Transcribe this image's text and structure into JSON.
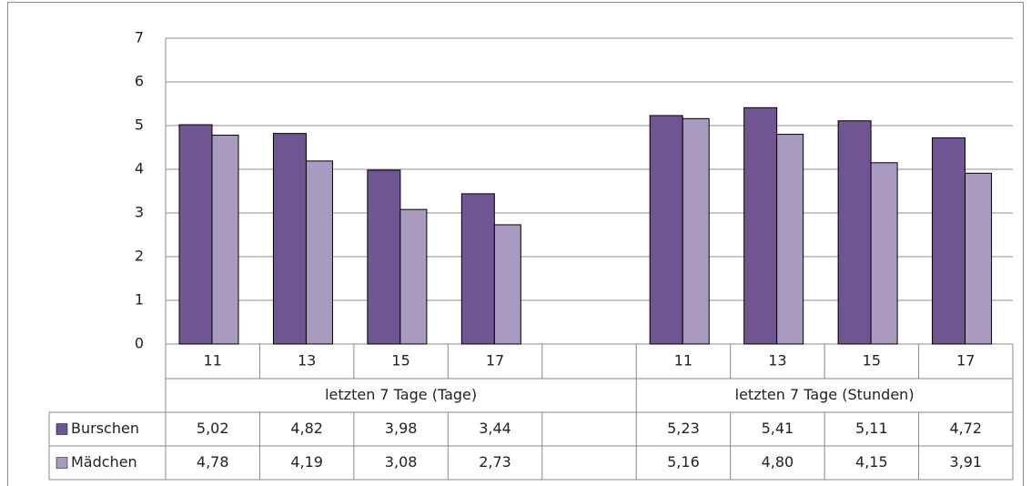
{
  "chart_data": {
    "type": "bar",
    "categories": [
      "11",
      "13",
      "15",
      "17",
      null,
      "11",
      "13",
      "15",
      "17"
    ],
    "groups": [
      "letzten 7 Tage (Tage)",
      "letzten 7 Tage (Stunden)"
    ],
    "series": [
      {
        "name": "Burschen",
        "color": "#6f5592",
        "values": [
          5.02,
          4.82,
          3.98,
          3.44,
          null,
          5.23,
          5.41,
          5.11,
          4.72
        ],
        "value_labels": [
          "5,02",
          "4,82",
          "3,98",
          "3,44",
          null,
          "5,23",
          "5,41",
          "5,11",
          "4,72"
        ]
      },
      {
        "name": "Mädchen",
        "color": "#a99bc0",
        "values": [
          4.78,
          4.19,
          3.08,
          2.73,
          null,
          5.16,
          4.8,
          4.15,
          3.91
        ],
        "value_labels": [
          "4,78",
          "4,19",
          "3,08",
          "2,73",
          null,
          "5,16",
          "4,80",
          "4,15",
          "3,91"
        ]
      }
    ],
    "ylim": [
      0,
      7
    ],
    "yticks": [
      0,
      1,
      2,
      3,
      4,
      5,
      6,
      7
    ],
    "grid": true
  }
}
